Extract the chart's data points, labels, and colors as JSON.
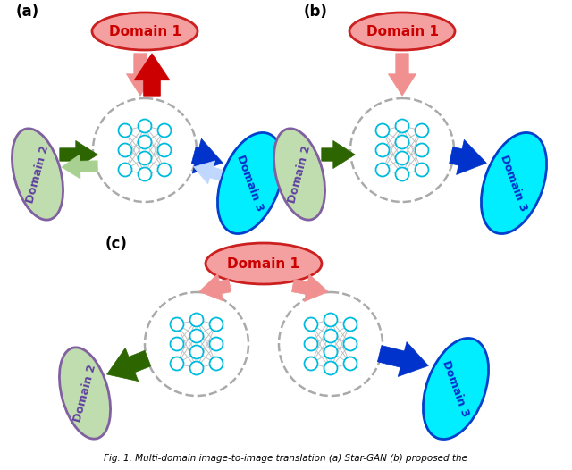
{
  "bg_color": "#ffffff",
  "domain1_color": "#f5a0a0",
  "domain1_edge": "#cc2020",
  "domain1_text": "Domain 1",
  "domain1_text_color": "#cc0000",
  "domain2_color": "#c0ddb0",
  "domain2_edge": "#8060a0",
  "domain2_text": "Domain 2",
  "domain2_text_color": "#6040a0",
  "domain3_color": "#00eeff",
  "domain3_edge": "#0040cc",
  "domain3_text": "Domain 3",
  "domain3_text_color": "#0030cc",
  "nn_node_color": "#00bbdd",
  "nn_line_color": "#c0c0c0",
  "nn_dashed_color": "#aaaaaa",
  "arrow_red_dark": "#cc0000",
  "arrow_red_light": "#f09090",
  "arrow_green_dark": "#2d6600",
  "arrow_green_light": "#a8d090",
  "arrow_blue_dark": "#0033cc",
  "arrow_blue_light": "#c0d8ff",
  "caption": "Fig. 1. Multi-domain image-to-image translation (a) Star-GAN (b) proposed the"
}
